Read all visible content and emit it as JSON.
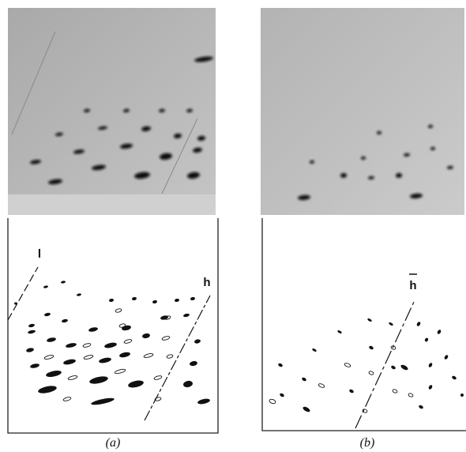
{
  "panels": [
    {
      "caption": "(a)",
      "axis_labels": [
        "l",
        "h"
      ]
    },
    {
      "caption": "(b)",
      "axis_labels": [
        "h"
      ]
    }
  ]
}
